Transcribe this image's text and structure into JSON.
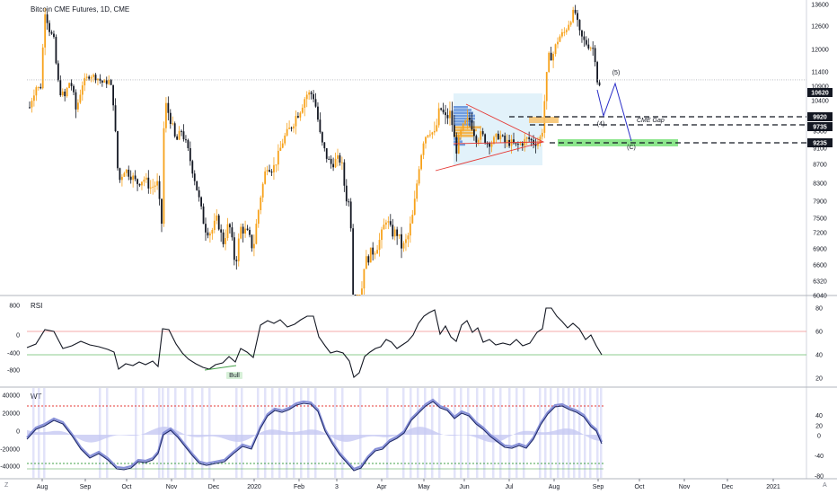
{
  "header": {
    "title": "Bitcoin CME Futures, 1D, CME"
  },
  "corner": {
    "left": "Z",
    "right": "A"
  },
  "chart_data": [
    {
      "type": "candlestick",
      "title": "Bitcoin CME Futures, 1D, CME",
      "yticks": [
        6040,
        6320,
        6600,
        6900,
        7200,
        7500,
        7900,
        8300,
        8700,
        9100,
        9500,
        10000,
        10400,
        10900,
        11400,
        12000,
        12600,
        13600
      ],
      "xticks": [
        "Aug",
        "Sep",
        "Oct",
        "Nov",
        "Dec",
        "2020",
        "Feb",
        "3",
        "Apr",
        "May",
        "Jun",
        "Jul",
        "Aug",
        "Sep",
        "Oct",
        "Nov",
        "Dec",
        "2021"
      ],
      "price_tags": [
        {
          "value": "10620",
          "color": "#131722"
        },
        {
          "value": "9920",
          "color": "#131722"
        },
        {
          "value": "9735",
          "color": "#131722"
        },
        {
          "value": "9235",
          "color": "#131722"
        }
      ],
      "annotations": {
        "cme_gap": "CME Gap",
        "wave_5": "(5)",
        "wave_4": "(4)",
        "wave_c": "(C)"
      },
      "key_prices": {
        "current": 10620,
        "gap_top": 9920,
        "gap_mid": 9735,
        "gap_bottom": 9235
      },
      "colors": {
        "up": "#f7a21b",
        "down": "#131722",
        "wave": "#2a2ec8",
        "gap_box": "#66dd66",
        "triangle": "#e53935"
      }
    },
    {
      "type": "line",
      "name": "RSI",
      "left_ticks": [
        800,
        0,
        -400,
        -800
      ],
      "right_ticks": [
        80,
        60,
        40,
        20
      ],
      "levels": [
        60,
        40
      ],
      "annotation": "Bull",
      "colors": {
        "line": "#131722",
        "upper_level": "#f28b8b",
        "lower_level": "#66bb6a"
      }
    },
    {
      "type": "line",
      "name": "WT",
      "left_ticks": [
        40000,
        20000,
        0,
        -20000,
        -40000
      ],
      "right_ticks": [
        40,
        20,
        0,
        -40,
        -80
      ],
      "colors": {
        "wt1": "#1f2a6b",
        "wt2": "#8891d8",
        "area": "#c5c8f3",
        "upper_level": "#e53935",
        "lower_level": "#43a047"
      }
    }
  ]
}
